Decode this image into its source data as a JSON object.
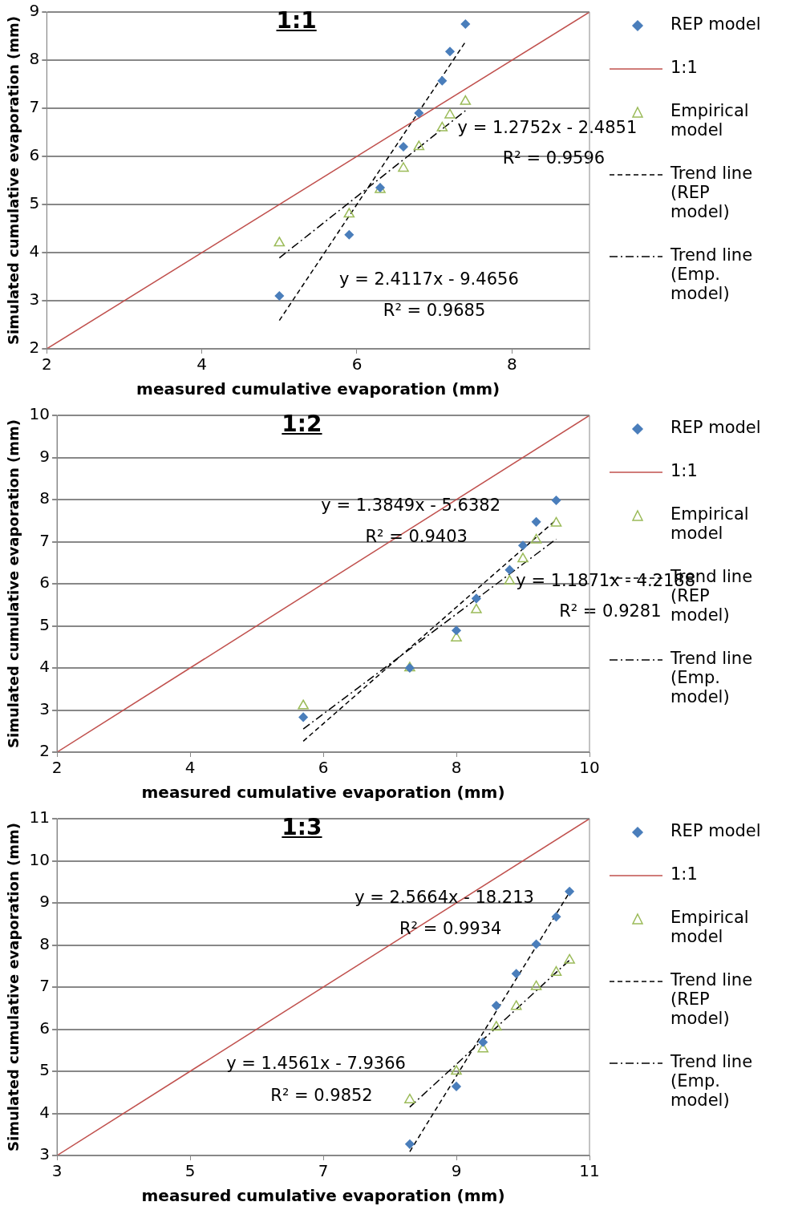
{
  "chart_data": [
    {
      "type": "scatter",
      "title": "1:1",
      "xlabel": "measured cumulative evaporation (mm)",
      "ylabel": "Simulated cumulative evaporation (mm)",
      "xlim": [
        2,
        9
      ],
      "xticks": [
        2,
        4,
        6,
        8
      ],
      "ylim": [
        2,
        9
      ],
      "yticks": [
        2,
        3,
        4,
        5,
        6,
        7,
        8,
        9
      ],
      "grid": "y",
      "legend": "right",
      "series": [
        {
          "name": "REP model",
          "type": "scatter",
          "marker": "diamond",
          "color": "#4a7ebb",
          "x": [
            5.0,
            5.9,
            6.3,
            6.6,
            6.8,
            7.1,
            7.2,
            7.4
          ],
          "values": [
            3.1,
            4.37,
            5.35,
            6.2,
            6.9,
            7.57,
            8.18,
            8.75
          ]
        },
        {
          "name": "1:1",
          "type": "line",
          "marker": "none",
          "line_style": "solid",
          "color": "#c0504d",
          "x": [
            2,
            9
          ],
          "values": [
            2,
            9
          ]
        },
        {
          "name": "Empirical model",
          "type": "scatter",
          "marker": "triangle",
          "color": "#9bbb59",
          "x": [
            5.0,
            5.9,
            6.3,
            6.6,
            6.8,
            7.1,
            7.2,
            7.4
          ],
          "values": [
            4.2,
            4.8,
            5.31,
            5.75,
            6.2,
            6.59,
            6.86,
            7.14
          ]
        },
        {
          "name": "Trend line (REP model)",
          "type": "line",
          "marker": "none",
          "line_style": "dashed",
          "color": "#000000",
          "x": [
            5.0,
            7.4
          ],
          "values": [
            2.59,
            8.38
          ]
        },
        {
          "name": "Trend line (Emp. model)",
          "type": "line",
          "marker": "none",
          "line_style": "dashdot",
          "color": "#000000",
          "x": [
            5.0,
            7.4
          ],
          "values": [
            3.89,
            6.95
          ]
        }
      ],
      "annotations": [
        "y = 1.2752x - 2.4851",
        "R² = 0.9596",
        "y = 2.4117x - 9.4656",
        "R² = 0.9685"
      ]
    },
    {
      "type": "scatter",
      "title": "1:2",
      "xlabel": "measured cumulative evaporation (mm)",
      "ylabel": "Simulated cumulative evaporation (mm)",
      "xlim": [
        2,
        10
      ],
      "xticks": [
        2,
        4,
        6,
        8,
        10
      ],
      "ylim": [
        2,
        10
      ],
      "yticks": [
        2,
        3,
        4,
        5,
        6,
        7,
        8,
        9,
        10
      ],
      "grid": "y",
      "legend": "right",
      "series": [
        {
          "name": "REP model",
          "type": "scatter",
          "marker": "diamond",
          "color": "#4a7ebb",
          "x": [
            5.7,
            7.3,
            8.0,
            8.3,
            8.8,
            9.0,
            9.2,
            9.5
          ],
          "values": [
            2.83,
            4.0,
            4.89,
            5.65,
            6.33,
            6.91,
            7.47,
            7.98
          ]
        },
        {
          "name": "1:1",
          "type": "line",
          "marker": "none",
          "line_style": "solid",
          "color": "#c0504d",
          "x": [
            2,
            10
          ],
          "values": [
            2,
            10
          ]
        },
        {
          "name": "Empirical model",
          "type": "scatter",
          "marker": "triangle",
          "color": "#9bbb59",
          "x": [
            5.7,
            7.3,
            8.0,
            8.3,
            8.8,
            9.0,
            9.2,
            9.5
          ],
          "values": [
            3.1,
            4.0,
            4.71,
            5.38,
            6.06,
            6.59,
            7.04,
            7.44
          ]
        },
        {
          "name": "Trend line (REP model)",
          "type": "line",
          "marker": "none",
          "line_style": "dashed",
          "color": "#000000",
          "x": [
            5.7,
            9.5
          ],
          "values": [
            2.26,
            7.52
          ]
        },
        {
          "name": "Trend line (Emp. model)",
          "type": "line",
          "marker": "none",
          "line_style": "dashdot",
          "color": "#000000",
          "x": [
            5.7,
            9.5
          ],
          "values": [
            2.55,
            7.06
          ]
        }
      ],
      "annotations": [
        "y = 1.3849x - 5.6382",
        "R² = 0.9403",
        "y = 1.1871x - 4.2188",
        "R² = 0.9281"
      ]
    },
    {
      "type": "scatter",
      "title": "1:3",
      "xlabel": "measured cumulative evaporation (mm)",
      "ylabel": "Simulated cumulative evaporation (mm)",
      "xlim": [
        3,
        11
      ],
      "xticks": [
        3,
        5,
        7,
        9,
        11
      ],
      "ylim": [
        3,
        11
      ],
      "yticks": [
        3,
        4,
        5,
        6,
        7,
        8,
        9,
        10,
        11
      ],
      "grid": "y",
      "legend": "right",
      "series": [
        {
          "name": "REP model",
          "type": "scatter",
          "marker": "diamond",
          "color": "#4a7ebb",
          "x": [
            8.3,
            9.0,
            9.4,
            9.6,
            9.9,
            10.2,
            10.5,
            10.7
          ],
          "values": [
            3.27,
            4.64,
            5.69,
            6.56,
            7.32,
            8.02,
            8.67,
            9.27
          ]
        },
        {
          "name": "1:1",
          "type": "line",
          "marker": "none",
          "line_style": "solid",
          "color": "#c0504d",
          "x": [
            3,
            11
          ],
          "values": [
            3,
            11
          ]
        },
        {
          "name": "Empirical model",
          "type": "scatter",
          "marker": "triangle",
          "color": "#9bbb59",
          "x": [
            8.3,
            9.0,
            9.4,
            9.6,
            9.9,
            10.2,
            10.5,
            10.7
          ],
          "values": [
            4.32,
            5.0,
            5.53,
            6.05,
            6.54,
            7.01,
            7.35,
            7.64
          ]
        },
        {
          "name": "Trend line (REP model)",
          "type": "line",
          "marker": "none",
          "line_style": "dashed",
          "color": "#000000",
          "x": [
            8.3,
            10.7
          ],
          "values": [
            3.09,
            9.25
          ]
        },
        {
          "name": "Trend line (Emp. model)",
          "type": "line",
          "marker": "none",
          "line_style": "dashdot",
          "color": "#000000",
          "x": [
            8.3,
            10.7
          ],
          "values": [
            4.15,
            7.64
          ]
        }
      ],
      "annotations": [
        "y = 2.5664x - 18.213",
        "R² = 0.9934",
        "y = 1.4561x - 7.9366",
        "R² = 0.9852"
      ]
    }
  ]
}
